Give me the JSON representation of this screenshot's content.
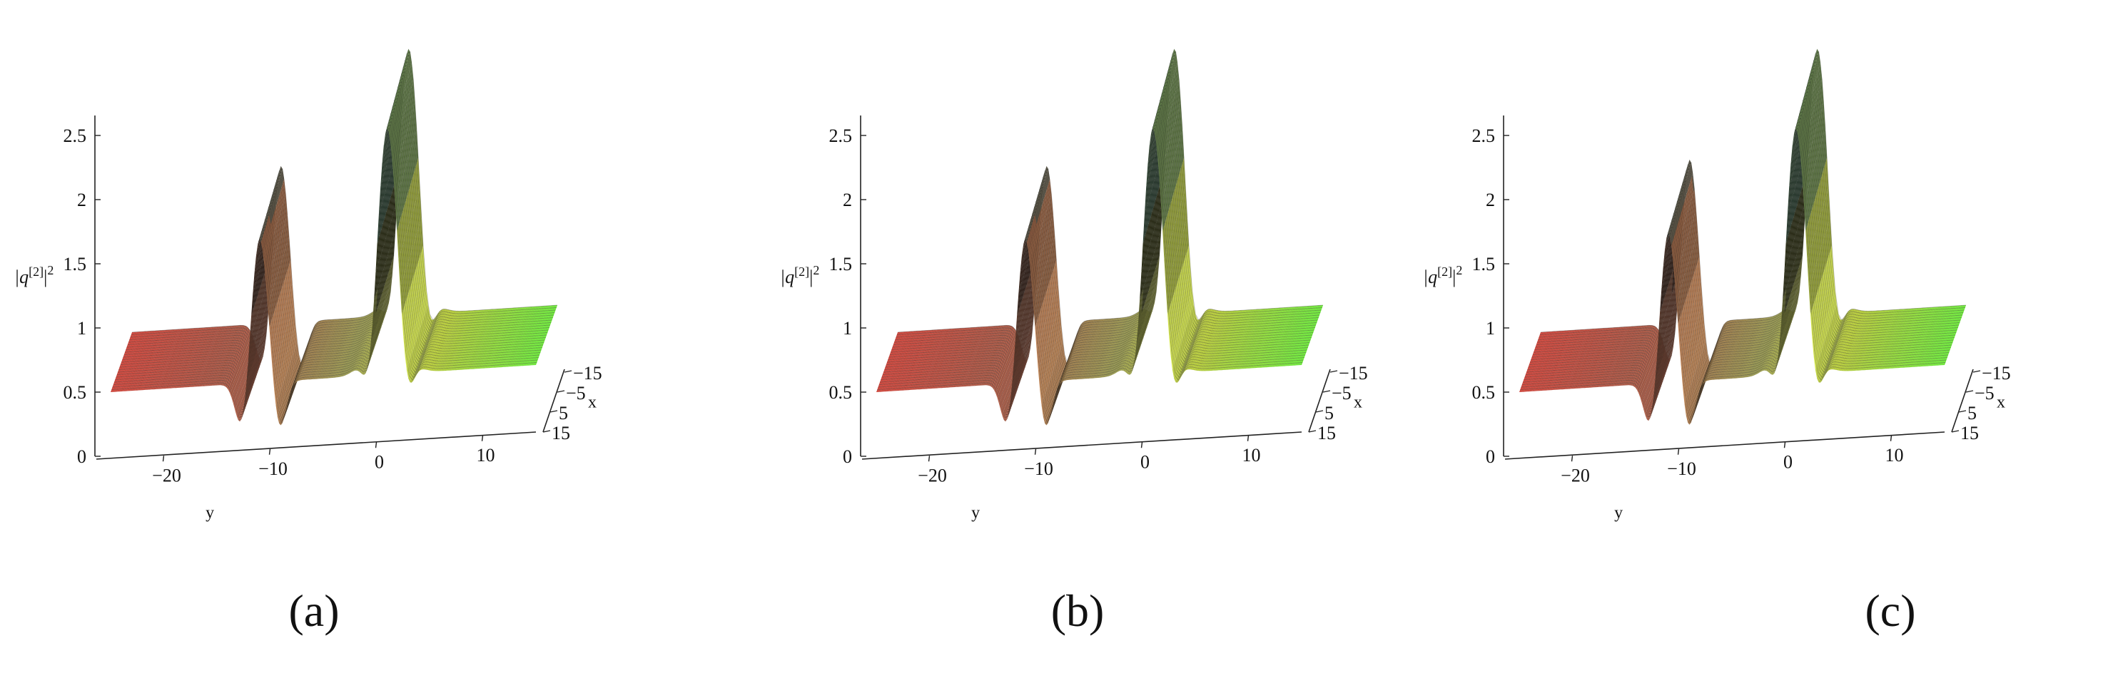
{
  "chart_data": [
    {
      "type": "surface",
      "panel_label": "(a)",
      "zlabel": "|q[2]|2",
      "xlabel": "x",
      "ylabel": "y",
      "z_ticks": [
        "0",
        "0.5",
        "1",
        "1.5",
        "2",
        "2.5"
      ],
      "y_ticks": [
        "−20",
        "−10",
        "0",
        "10"
      ],
      "x_ticks": [
        "−15",
        "−5",
        "5",
        "15"
      ],
      "zlim": [
        0,
        2.6
      ],
      "ylim": [
        -25,
        15
      ],
      "xlim": [
        -15,
        15
      ],
      "background_level": 0.5,
      "peaks": [
        {
          "y": -11,
          "z": 1.75
        },
        {
          "y": 1,
          "z": 2.6
        }
      ]
    },
    {
      "type": "surface",
      "panel_label": "(b)",
      "zlabel": "|q[2]|2",
      "xlabel": "x",
      "ylabel": "y",
      "z_ticks": [
        "0",
        "0.5",
        "1",
        "1.5",
        "2",
        "2.5"
      ],
      "y_ticks": [
        "−20",
        "−10",
        "0",
        "10"
      ],
      "x_ticks": [
        "−15",
        "−5",
        "5",
        "15"
      ],
      "zlim": [
        0,
        2.6
      ],
      "ylim": [
        -25,
        15
      ],
      "xlim": [
        -15,
        15
      ],
      "background_level": 0.5,
      "peaks": [
        {
          "y": -11,
          "z": 1.75
        },
        {
          "y": 1,
          "z": 2.6
        }
      ]
    },
    {
      "type": "surface",
      "panel_label": "(c)",
      "zlabel": "|q[2]|2",
      "xlabel": "x",
      "ylabel": "y",
      "z_ticks": [
        "0",
        "0.5",
        "1",
        "1.5",
        "2",
        "2.5"
      ],
      "y_ticks": [
        "−20",
        "−10",
        "0",
        "10"
      ],
      "x_ticks": [
        "−15",
        "−5",
        "5",
        "15"
      ],
      "zlim": [
        0,
        2.6
      ],
      "ylim": [
        -25,
        15
      ],
      "xlim": [
        -15,
        15
      ],
      "background_level": 0.5,
      "peaks": [
        {
          "y": -11,
          "z": 1.8
        },
        {
          "y": 1,
          "z": 2.6
        }
      ]
    }
  ]
}
